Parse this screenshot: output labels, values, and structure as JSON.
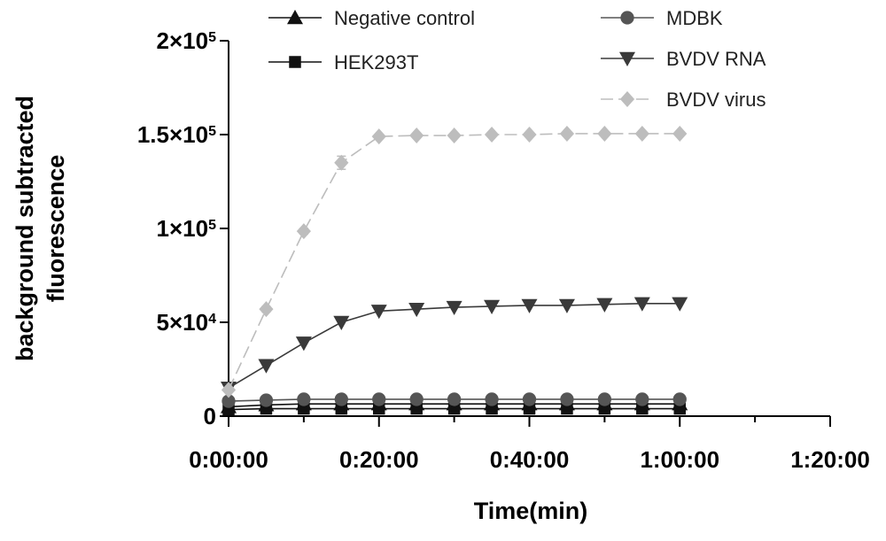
{
  "chart_data": {
    "type": "line",
    "title": "",
    "xlabel": "Time(min)",
    "ylabel_lines": [
      "background subtracted",
      "fluorescence"
    ],
    "x_unit": "minutes",
    "xlim": [
      0,
      80
    ],
    "ylim": [
      0,
      200000
    ],
    "x_ticks": [
      {
        "value": 0,
        "label": "0:00:00"
      },
      {
        "value": 20,
        "label": "0:20:00"
      },
      {
        "value": 40,
        "label": "0:40:00"
      },
      {
        "value": 60,
        "label": "1:00:00"
      },
      {
        "value": 80,
        "label": "1:20:00"
      }
    ],
    "x_minor_ticks": [
      10,
      30,
      50,
      70
    ],
    "y_ticks": [
      {
        "value": 0,
        "mantissa": "0",
        "exp": ""
      },
      {
        "value": 50000,
        "mantissa": "5×10",
        "exp": "4"
      },
      {
        "value": 100000,
        "mantissa": "1×10",
        "exp": "5"
      },
      {
        "value": 150000,
        "mantissa": "1.5×10",
        "exp": "5"
      },
      {
        "value": 200000,
        "mantissa": "2×10",
        "exp": "5"
      }
    ],
    "x": [
      0,
      5,
      10,
      15,
      20,
      25,
      30,
      35,
      40,
      45,
      50,
      55,
      60
    ],
    "series": [
      {
        "name": "Negative control",
        "marker": "triangle-up",
        "color": "#111111",
        "dash": false,
        "values": [
          5000,
          6000,
          6500,
          6500,
          6500,
          6500,
          6500,
          6500,
          6500,
          6500,
          6500,
          6500,
          6500
        ]
      },
      {
        "name": "HEK293T",
        "marker": "square",
        "color": "#111111",
        "dash": false,
        "values": [
          3500,
          4000,
          4000,
          4000,
          4000,
          4000,
          4000,
          4000,
          4000,
          4000,
          4000,
          4000,
          4000
        ]
      },
      {
        "name": "MDBK",
        "marker": "circle",
        "color": "#555555",
        "dash": false,
        "values": [
          8000,
          8500,
          9000,
          9000,
          9000,
          9000,
          9000,
          9000,
          9000,
          9000,
          9000,
          9000,
          9000
        ]
      },
      {
        "name": "BVDV RNA",
        "marker": "triangle-down",
        "color": "#3a3a3a",
        "dash": false,
        "values": [
          15000,
          27000,
          39000,
          50000,
          56000,
          57000,
          58000,
          58500,
          59000,
          59000,
          59500,
          60000,
          60000
        ]
      },
      {
        "name": "BVDV virus",
        "marker": "diamond",
        "color": "#bdbdbd",
        "dash": true,
        "values": [
          14000,
          57000,
          98500,
          135000,
          149000,
          149500,
          149500,
          150000,
          150000,
          150500,
          150500,
          150500,
          150500
        ],
        "errors": [
          0,
          1500,
          1500,
          3500,
          1000,
          500,
          500,
          500,
          500,
          500,
          500,
          500,
          500
        ]
      }
    ],
    "legend": {
      "placement": "top-center",
      "columns": 2
    }
  }
}
